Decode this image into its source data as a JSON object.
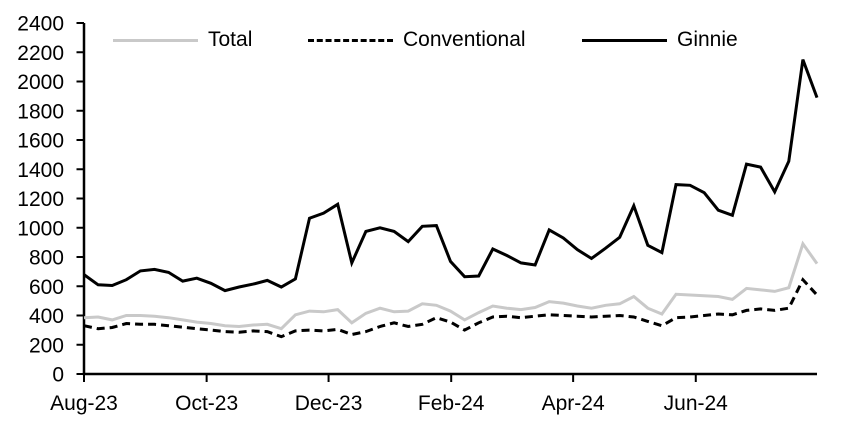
{
  "chart_data": {
    "type": "line",
    "title": "",
    "xlabel": "",
    "ylabel": "",
    "grid": false,
    "legend_position": "top-inside",
    "ylim": [
      0,
      2400
    ],
    "y_tick_step": 200,
    "y_tick_labels": [
      "0",
      "200",
      "400",
      "600",
      "800",
      "1000",
      "1200",
      "1400",
      "1600",
      "1800",
      "2000",
      "2200",
      "2400"
    ],
    "x_tick_labels": [
      "Aug-23",
      "Oct-23",
      "Dec-23",
      "Feb-24",
      "Apr-24",
      "Jun-24"
    ],
    "x_tick_index": [
      0,
      8.7,
      17.35,
      26.05,
      34.7,
      43.4
    ],
    "x_unit": "weekly observations, Aug-2023 through Aug-2024",
    "series": [
      {
        "name": "Total",
        "color": "#c9c9c9",
        "dash": "solid",
        "values": [
          385,
          390,
          370,
          400,
          400,
          395,
          385,
          370,
          355,
          345,
          330,
          325,
          335,
          340,
          310,
          405,
          430,
          425,
          440,
          350,
          415,
          450,
          425,
          430,
          480,
          470,
          430,
          370,
          420,
          465,
          450,
          440,
          455,
          495,
          485,
          465,
          450,
          470,
          480,
          530,
          450,
          410,
          545,
          540,
          535,
          530,
          510,
          585,
          575,
          565,
          590,
          890,
          755
        ]
      },
      {
        "name": "Conventional",
        "color": "#000000",
        "dash": "dashed",
        "values": [
          330,
          310,
          318,
          345,
          340,
          340,
          330,
          320,
          310,
          300,
          290,
          285,
          295,
          290,
          255,
          295,
          300,
          295,
          305,
          270,
          290,
          325,
          350,
          325,
          340,
          385,
          355,
          300,
          350,
          390,
          395,
          385,
          395,
          405,
          400,
          395,
          390,
          395,
          400,
          390,
          360,
          330,
          385,
          390,
          400,
          410,
          405,
          435,
          445,
          435,
          450,
          645,
          540
        ]
      },
      {
        "name": "Ginnie",
        "color": "#000000",
        "dash": "solid",
        "values": [
          680,
          610,
          605,
          645,
          705,
          715,
          695,
          635,
          655,
          620,
          570,
          595,
          615,
          640,
          595,
          650,
          1065,
          1100,
          1160,
          760,
          975,
          1000,
          975,
          905,
          1010,
          1015,
          770,
          665,
          670,
          855,
          810,
          760,
          745,
          985,
          930,
          850,
          790,
          860,
          935,
          1150,
          880,
          830,
          1295,
          1290,
          1240,
          1120,
          1085,
          1435,
          1415,
          1245,
          1455,
          2150,
          1890
        ]
      }
    ]
  },
  "colors": {
    "axis": "#000000",
    "text": "#000000",
    "background": "#ffffff"
  }
}
